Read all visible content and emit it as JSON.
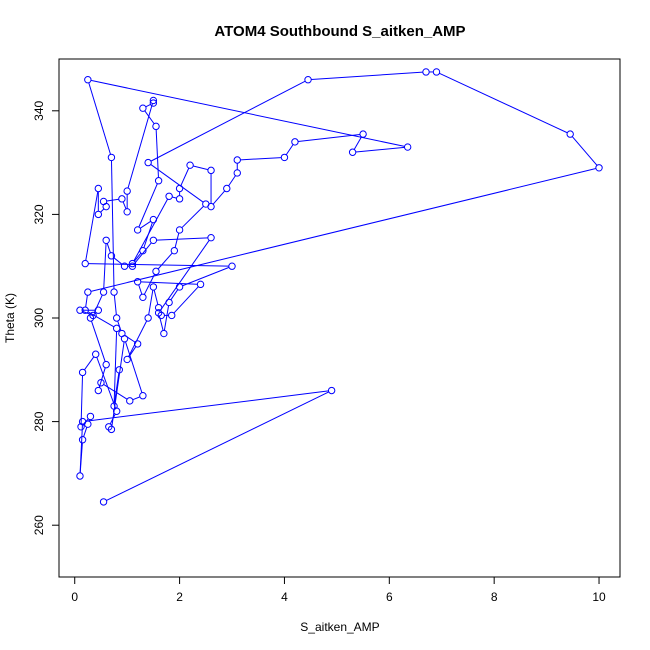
{
  "chart_data": {
    "type": "line",
    "title": "ATOM4 Southbound S_aitken_AMP",
    "xlabel": "S_aitken_AMP",
    "ylabel": "Theta (K)",
    "xlim": [
      -0.3,
      10.4
    ],
    "ylim": [
      250,
      350
    ],
    "xticks": [
      "0",
      "2",
      "4",
      "6",
      "8",
      "10"
    ],
    "yticks": [
      "260",
      "280",
      "300",
      "320",
      "340"
    ],
    "grid": false,
    "legend": "none",
    "marker": "open-circle",
    "series": [
      {
        "color": "#0000ff",
        "points": [
          [
            0.55,
            264.5
          ],
          [
            4.9,
            286
          ],
          [
            0.15,
            280
          ],
          [
            0.1,
            269.5
          ],
          [
            0.15,
            276.5
          ],
          [
            0.25,
            279.5
          ],
          [
            0.3,
            281
          ],
          [
            0.12,
            279
          ],
          [
            0.15,
            289.5
          ],
          [
            0.4,
            293
          ],
          [
            0.8,
            282
          ],
          [
            0.65,
            279
          ],
          [
            0.7,
            278.5
          ],
          [
            0.95,
            296
          ],
          [
            1.3,
            285
          ],
          [
            1.05,
            284
          ],
          [
            0.5,
            287.5
          ],
          [
            0.45,
            286
          ],
          [
            0.6,
            291
          ],
          [
            0.3,
            300
          ],
          [
            0.45,
            301.5
          ],
          [
            0.1,
            301.5
          ],
          [
            0.35,
            300.5
          ],
          [
            0.55,
            305
          ],
          [
            0.6,
            315
          ],
          [
            0.7,
            312
          ],
          [
            0.95,
            310
          ],
          [
            1.1,
            310
          ],
          [
            1.5,
            315
          ],
          [
            2.6,
            315.5
          ],
          [
            1.6,
            301
          ],
          [
            1.7,
            297
          ],
          [
            1.8,
            303
          ],
          [
            2.0,
            306
          ],
          [
            3.0,
            310
          ],
          [
            0.2,
            310.5
          ],
          [
            0.45,
            325
          ],
          [
            0.45,
            320
          ],
          [
            0.6,
            321.5
          ],
          [
            0.55,
            322.5
          ],
          [
            0.9,
            323
          ],
          [
            1.0,
            320.5
          ],
          [
            1.0,
            324.5
          ],
          [
            1.5,
            342
          ],
          [
            1.5,
            341.5
          ],
          [
            1.3,
            340.5
          ],
          [
            1.55,
            337
          ],
          [
            1.6,
            326.5
          ],
          [
            1.2,
            317
          ],
          [
            1.5,
            319
          ],
          [
            1.3,
            313
          ],
          [
            1.1,
            310.5
          ],
          [
            1.8,
            323.5
          ],
          [
            2.0,
            323
          ],
          [
            2.0,
            325
          ],
          [
            2.2,
            329.5
          ],
          [
            2.6,
            328.5
          ],
          [
            2.6,
            321.5
          ],
          [
            2.9,
            325
          ],
          [
            3.1,
            328
          ],
          [
            3.1,
            330.5
          ],
          [
            4.0,
            331
          ],
          [
            4.2,
            334
          ],
          [
            5.5,
            335.5
          ],
          [
            5.3,
            332
          ],
          [
            6.35,
            333
          ],
          [
            0.25,
            346
          ],
          [
            0.7,
            331
          ],
          [
            0.75,
            305
          ],
          [
            0.8,
            300
          ],
          [
            0.9,
            297
          ],
          [
            1.2,
            295
          ],
          [
            1.0,
            292
          ],
          [
            1.4,
            300
          ],
          [
            1.5,
            306
          ],
          [
            1.6,
            302
          ],
          [
            1.65,
            300.5
          ],
          [
            1.85,
            300.5
          ],
          [
            2.4,
            306.5
          ],
          [
            1.2,
            307
          ],
          [
            1.3,
            304
          ],
          [
            1.55,
            309
          ],
          [
            1.9,
            313
          ],
          [
            2.0,
            317
          ],
          [
            2.5,
            322
          ],
          [
            1.4,
            330
          ],
          [
            4.45,
            346
          ],
          [
            6.7,
            347.5
          ],
          [
            6.9,
            347.5
          ],
          [
            9.45,
            335.5
          ],
          [
            10.0,
            329
          ],
          [
            0.25,
            305
          ],
          [
            0.2,
            301.5
          ],
          [
            0.8,
            298
          ],
          [
            0.75,
            283
          ],
          [
            0.85,
            290
          ]
        ]
      }
    ]
  }
}
